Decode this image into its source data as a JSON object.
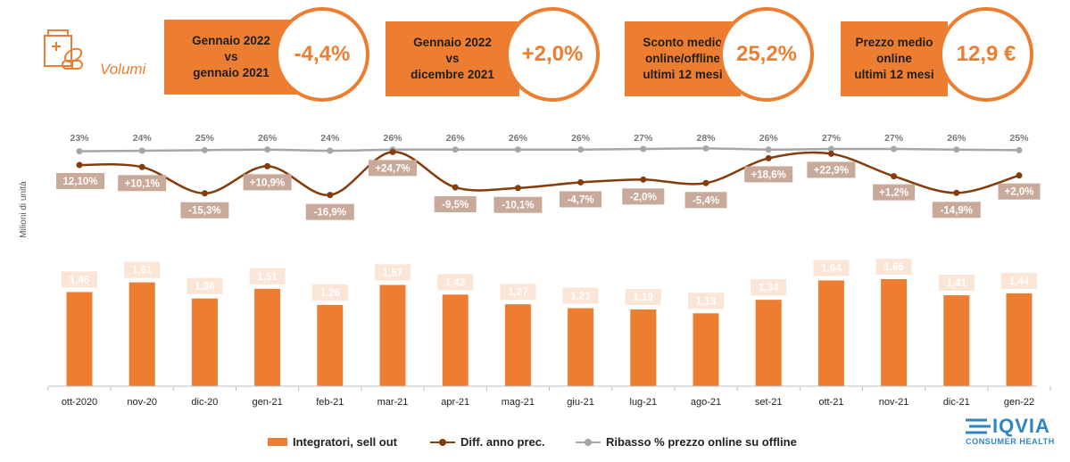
{
  "header": {
    "section_label": "Volumi",
    "section_icon": "pill-bottle-icon"
  },
  "kpis": [
    {
      "text": "Gennaio 2022\nvs\ngennaio 2021",
      "value": "-4,4%"
    },
    {
      "text": "Gennaio 2022\nvs\ndicembre 2021",
      "value": "+2,0%"
    },
    {
      "text": "Sconto medio\nonline/offline\nultimi 12 mesi",
      "value": "25,2%"
    },
    {
      "text": "Prezzo medio\nonline\nultimi 12 mesi",
      "value": "12,9 €"
    }
  ],
  "colors": {
    "accent": "#ED7D31",
    "line_brown": "#843C0C",
    "line_gray": "#A6A6A6"
  },
  "chart_data": {
    "type": "bar",
    "ylabel": "Milioni di unità",
    "categories": [
      "ott-2020",
      "nov-20",
      "dic-20",
      "gen-21",
      "feb-21",
      "mar-21",
      "apr-21",
      "mag-21",
      "giu-21",
      "lug-21",
      "ago-21",
      "set-21",
      "ott-21",
      "nov-21",
      "dic-21",
      "gen-22"
    ],
    "series": [
      {
        "name": "Integratori, sell out",
        "type": "bar",
        "values": [
          1.46,
          1.61,
          1.36,
          1.51,
          1.26,
          1.57,
          1.42,
          1.27,
          1.21,
          1.19,
          1.13,
          1.34,
          1.64,
          1.66,
          1.41,
          1.44
        ],
        "labels": [
          "1,46",
          "1,61",
          "1,36",
          "1,51",
          "1,26",
          "1,57",
          "1,42",
          "1,27",
          "1,21",
          "1,19",
          "1,13",
          "1,34",
          "1,64",
          "1,66",
          "1,41",
          "1,44"
        ]
      },
      {
        "name": "Diff. anno prec.",
        "type": "line",
        "values": [
          12.1,
          10.1,
          -15.3,
          10.9,
          -16.9,
          24.7,
          -9.5,
          -10.1,
          -4.7,
          -2.0,
          -5.4,
          18.6,
          22.9,
          1.2,
          -14.9,
          2.0
        ],
        "labels": [
          "12,10%",
          "+10,1%",
          "-15,3%",
          "+10,9%",
          "-16,9%",
          "+24,7%",
          "-9,5%",
          "-10,1%",
          "-4,7%",
          "-2,0%",
          "-5,4%",
          "+18,6%",
          "+22,9%",
          "+1,2%",
          "-14,9%",
          "+2,0%"
        ]
      },
      {
        "name": "Ribasso % prezzo online su offline",
        "type": "line",
        "values": [
          23,
          24,
          25,
          26,
          24,
          26,
          26,
          26,
          26,
          27,
          28,
          26,
          27,
          27,
          26,
          25
        ],
        "labels": [
          "23%",
          "24%",
          "25%",
          "26%",
          "24%",
          "26%",
          "26%",
          "26%",
          "26%",
          "27%",
          "28%",
          "26%",
          "27%",
          "27%",
          "26%",
          "25%"
        ]
      }
    ],
    "legend_position": "bottom",
    "grid": false
  },
  "logo": {
    "name": "IQVIA",
    "subtitle": "CONSUMER HEALTH"
  }
}
